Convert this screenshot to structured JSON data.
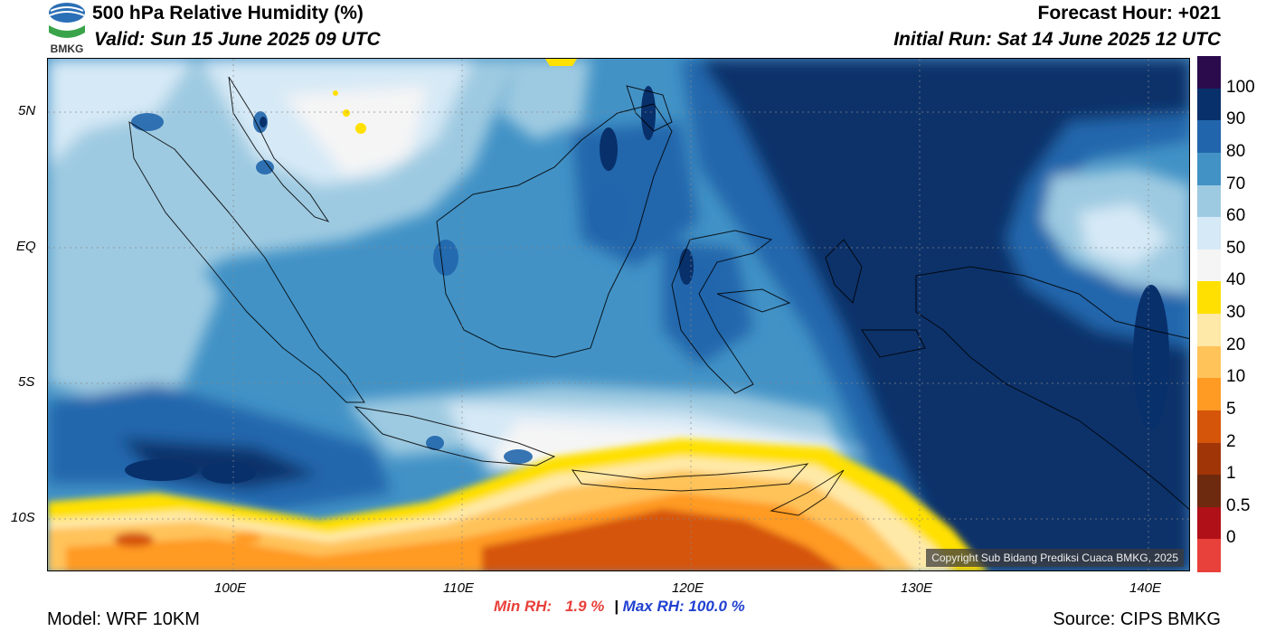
{
  "header": {
    "title": "500 hPa Relative Humidity (%)",
    "valid": "Valid: Sun 15 June 2025 09 UTC",
    "forecast_hour": "Forecast Hour: +021",
    "initial_run": "Initial Run: Sat 14 June 2025 12 UTC",
    "logo_text": "BMKG"
  },
  "map": {
    "lon_labels": [
      "100E",
      "110E",
      "120E",
      "130E",
      "140E"
    ],
    "lat_labels": [
      "5N",
      "EQ",
      "5S",
      "10S"
    ],
    "copyright": "Copyright Sub Bidang Prediksi Cuaca BMKG, 2025"
  },
  "colorbar": {
    "labels": [
      "100",
      "90",
      "80",
      "70",
      "60",
      "50",
      "40",
      "30",
      "20",
      "10",
      "5",
      "2",
      "1",
      "0.5",
      "0"
    ],
    "colors": [
      "#2c0b4d",
      "#08306b",
      "#2166ac",
      "#4292c6",
      "#9ecae1",
      "#d6e9f6",
      "#f5f5f5",
      "#ffe000",
      "#ffe9a8",
      "#ffc35a",
      "#ff9a22",
      "#d5550a",
      "#a03508",
      "#6e2a0e",
      "#b01018",
      "#e8403a"
    ]
  },
  "stats": {
    "min_label": "Min RH:",
    "min_value": "1.9 %",
    "separator": "|",
    "max_label": "Max RH: 100.0 %"
  },
  "footer": {
    "model": "Model: WRF 10KM",
    "source": "Source: CIPS BMKG"
  }
}
